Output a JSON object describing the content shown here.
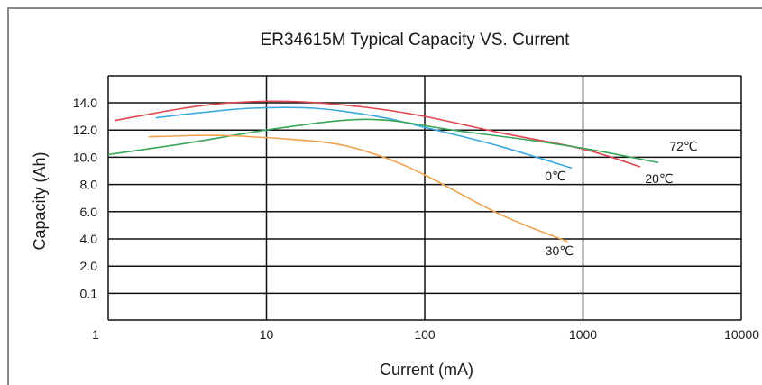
{
  "chart_data": {
    "type": "line",
    "title": "ER34615M Typical Capacity VS. Current",
    "xlabel": "Current (mA)",
    "ylabel": "Capacity (Ah)",
    "x_scale": "log",
    "xlim": [
      1,
      10000
    ],
    "x_ticks": [
      "1",
      "10",
      "100",
      "1000",
      "10000"
    ],
    "y_ticks": [
      "14.0",
      "12.0",
      "10.0",
      "8.0",
      "6.0",
      "4.0",
      "2.0",
      "0.1"
    ],
    "grid": true,
    "legend": "none",
    "series": [
      {
        "name": "20℃",
        "color": "#e0454e",
        "points": [
          [
            1.1,
            12.7
          ],
          [
            3,
            13.6
          ],
          [
            6,
            14.0
          ],
          [
            14,
            14.1
          ],
          [
            40,
            13.7
          ],
          [
            100,
            13.0
          ],
          [
            300,
            11.8
          ],
          [
            1000,
            10.6
          ],
          [
            2300,
            9.3
          ]
        ]
      },
      {
        "name": "0℃",
        "color": "#3ba9e0",
        "points": [
          [
            2,
            12.9
          ],
          [
            4,
            13.3
          ],
          [
            8,
            13.6
          ],
          [
            20,
            13.6
          ],
          [
            50,
            13.0
          ],
          [
            100,
            12.2
          ],
          [
            300,
            10.8
          ],
          [
            850,
            9.2
          ]
        ]
      },
      {
        "name": "72℃",
        "color": "#3aa65c",
        "points": [
          [
            1,
            10.2
          ],
          [
            3,
            11.0
          ],
          [
            10,
            12.0
          ],
          [
            30,
            12.7
          ],
          [
            60,
            12.7
          ],
          [
            150,
            12.0
          ],
          [
            500,
            11.2
          ],
          [
            1200,
            10.5
          ],
          [
            3000,
            9.6
          ]
        ]
      },
      {
        "name": "-30℃",
        "color": "#f0a04a",
        "points": [
          [
            1.8,
            11.5
          ],
          [
            5,
            11.6
          ],
          [
            15,
            11.3
          ],
          [
            30,
            10.9
          ],
          [
            55,
            10.0
          ],
          [
            100,
            8.7
          ],
          [
            300,
            5.8
          ],
          [
            800,
            3.8
          ]
        ]
      }
    ]
  }
}
